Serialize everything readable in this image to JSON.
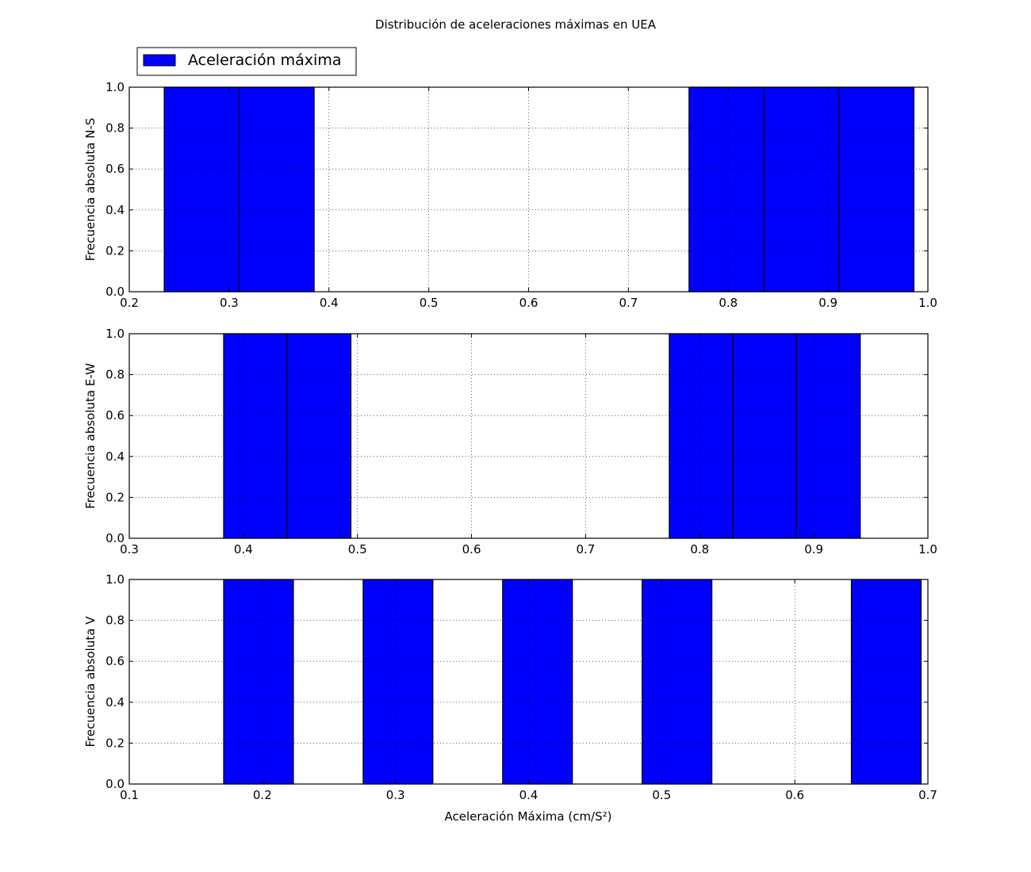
{
  "chart_data": {
    "type": "bar",
    "title": "Distribución de aceleraciones máximas en UEA",
    "legend": {
      "label": "Aceleración máxima",
      "placement": "top-left (above first subplot)"
    },
    "xlabel": "Aceleración Máxima (cm/S²)",
    "bar_color": "#0000ff",
    "grid": true,
    "subplots": [
      {
        "ylabel": "Frecuencia absoluta N-S",
        "xlim": [
          0.2,
          1.0
        ],
        "ylim": [
          0,
          1.0
        ],
        "xticks": [
          "0.2",
          "0.3",
          "0.4",
          "0.5",
          "0.6",
          "0.7",
          "0.8",
          "0.9",
          "1.0"
        ],
        "yticks": [
          "0.0",
          "0.2",
          "0.4",
          "0.6",
          "0.8",
          "1.0"
        ],
        "bin_start": 0.235,
        "bin_width": 0.0751,
        "counts": [
          1,
          1,
          0,
          0,
          0,
          0,
          0,
          1,
          1,
          1
        ]
      },
      {
        "ylabel": "Frecuencia absoluta E-W",
        "xlim": [
          0.3,
          1.0
        ],
        "ylim": [
          0,
          1.0
        ],
        "xticks": [
          "0.3",
          "0.4",
          "0.5",
          "0.6",
          "0.7",
          "0.8",
          "0.9",
          "1.0"
        ],
        "yticks": [
          "0.0",
          "0.2",
          "0.4",
          "0.6",
          "0.8",
          "1.0"
        ],
        "bin_start": 0.3827,
        "bin_width": 0.0558,
        "counts": [
          1,
          1,
          0,
          0,
          0,
          0,
          0,
          1,
          1,
          1
        ]
      },
      {
        "ylabel": "Frecuencia absoluta V",
        "xlim": [
          0.1,
          0.7
        ],
        "ylim": [
          0,
          1.0
        ],
        "xticks": [
          "0.1",
          "0.2",
          "0.3",
          "0.4",
          "0.5",
          "0.6",
          "0.7"
        ],
        "yticks": [
          "0.0",
          "0.2",
          "0.4",
          "0.6",
          "0.8",
          "1.0"
        ],
        "bin_start": 0.1709,
        "bin_width": 0.0524,
        "counts": [
          1,
          0,
          1,
          0,
          1,
          0,
          1,
          0,
          0,
          1
        ]
      }
    ]
  }
}
